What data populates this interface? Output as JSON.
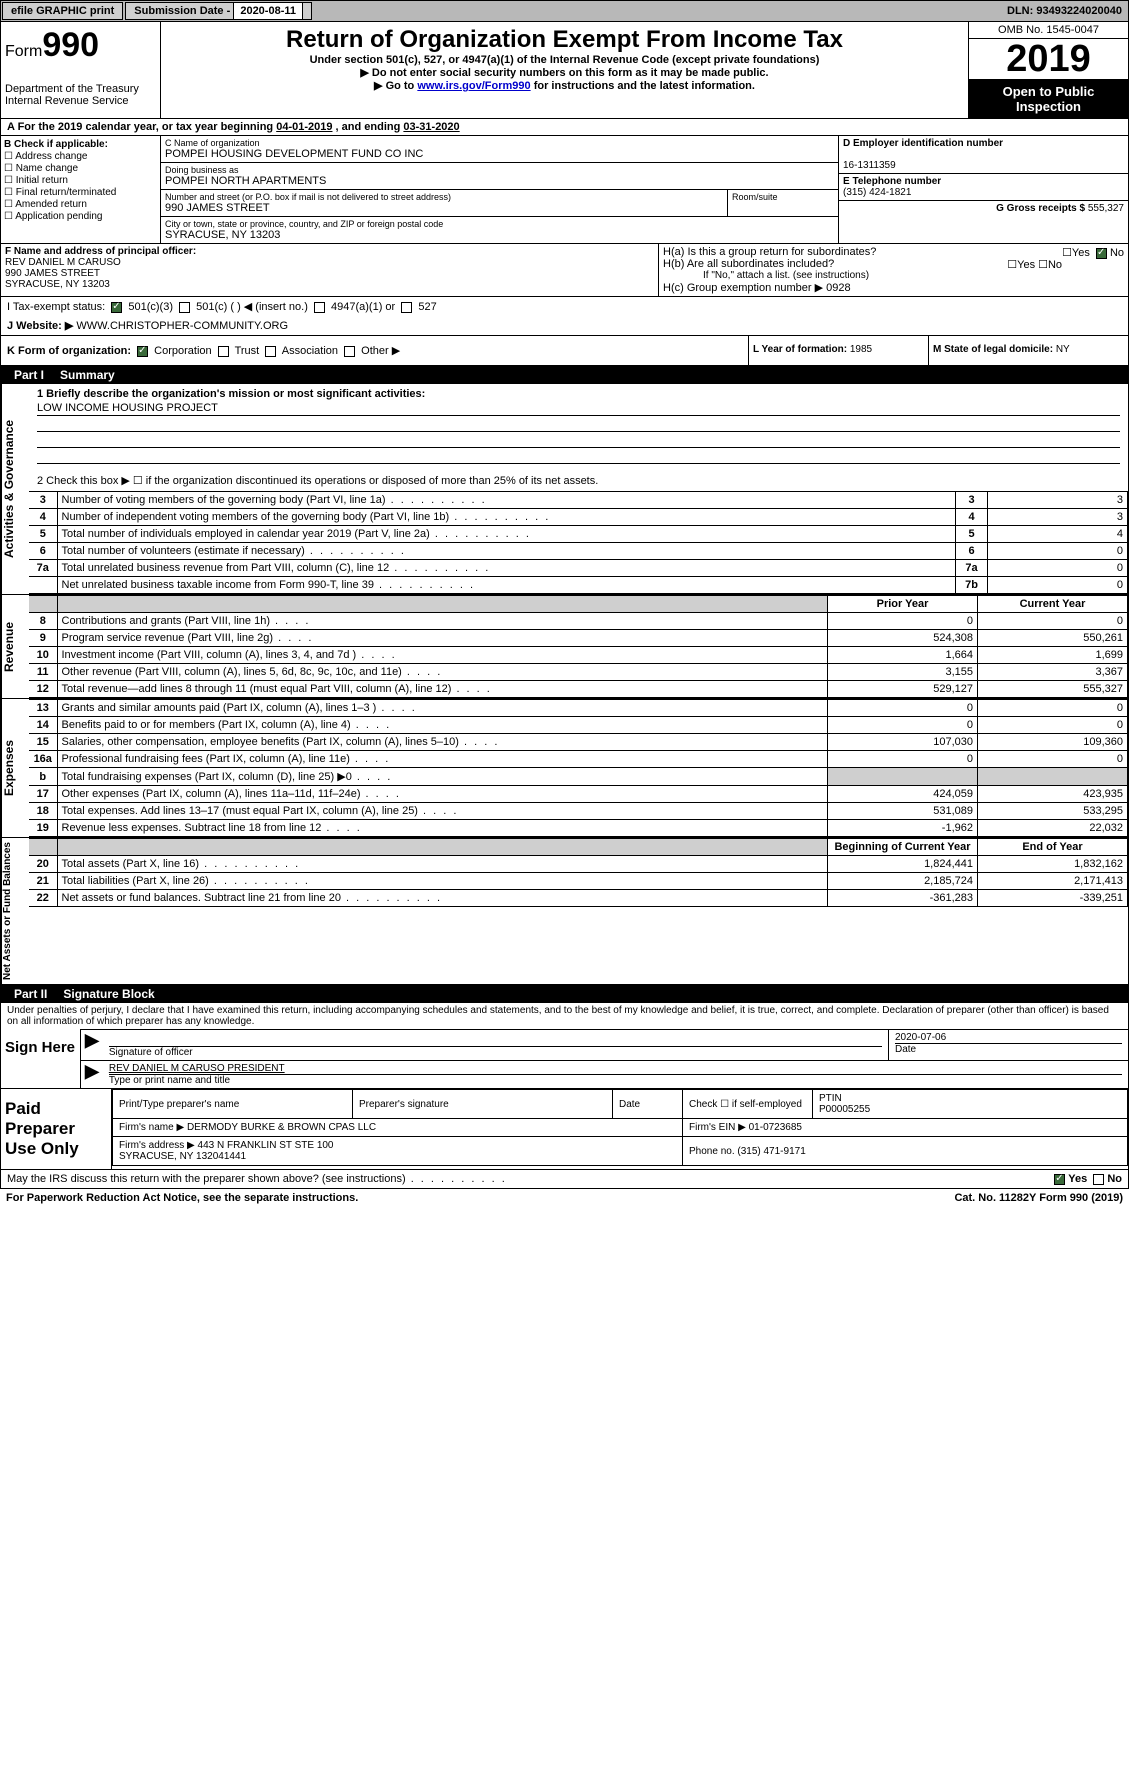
{
  "topbar": {
    "efile": "efile GRAPHIC print",
    "sub_label": "Submission Date - ",
    "sub_date": "2020-08-11",
    "dln": "DLN: 93493224020040"
  },
  "header": {
    "form_prefix": "Form",
    "form_number": "990",
    "dept": "Department of the Treasury\nInternal Revenue Service",
    "title": "Return of Organization Exempt From Income Tax",
    "subtitle": "Under section 501(c), 527, or 4947(a)(1) of the Internal Revenue Code (except private foundations)",
    "note1": "▶ Do not enter social security numbers on this form as it may be made public.",
    "note2_pre": "▶ Go to ",
    "note2_link": "www.irs.gov/Form990",
    "note2_post": " for instructions and the latest information.",
    "omb": "OMB No. 1545-0047",
    "year": "2019",
    "open_public": "Open to Public Inspection"
  },
  "period": {
    "text_pre": "A For the 2019 calendar year, or tax year beginning ",
    "begin": "04-01-2019",
    "text_mid": " , and ending ",
    "end": "03-31-2020"
  },
  "boxB": {
    "label": "B Check if applicable:",
    "opts": [
      "Address change",
      "Name change",
      "Initial return",
      "Final return/terminated",
      "Amended return",
      "Application pending"
    ]
  },
  "boxC": {
    "name_label": "C Name of organization",
    "name": "POMPEI HOUSING DEVELOPMENT FUND CO INC",
    "dba_label": "Doing business as",
    "dba": "POMPEI NORTH APARTMENTS",
    "addr_label": "Number and street (or P.O. box if mail is not delivered to street address)",
    "room_label": "Room/suite",
    "addr": "990 JAMES STREET",
    "city_label": "City or town, state or province, country, and ZIP or foreign postal code",
    "city": "SYRACUSE, NY  13203"
  },
  "boxD": {
    "ein_label": "D Employer identification number",
    "ein": "16-1311359",
    "phone_label": "E Telephone number",
    "phone": "(315) 424-1821",
    "gross_label": "G Gross receipts $ ",
    "gross": "555,327"
  },
  "boxF": {
    "label": "F  Name and address of principal officer:",
    "name": "REV DANIEL M CARUSO",
    "addr": "990 JAMES STREET",
    "city": "SYRACUSE, NY  13203"
  },
  "boxH": {
    "a": "H(a)  Is this a group return for subordinates?",
    "a_no": "No",
    "b": "H(b)  Are all subordinates included?",
    "b_note": "If \"No,\" attach a list. (see instructions)",
    "c": "H(c)  Group exemption number ▶",
    "c_val": "0928"
  },
  "boxI": {
    "label": "I   Tax-exempt status:",
    "o1": "501(c)(3)",
    "o2": "501(c) (   ) ◀ (insert no.)",
    "o3": "4947(a)(1) or",
    "o4": "527"
  },
  "boxJ": {
    "label": "J   Website: ▶",
    "val": "WWW.CHRISTOPHER-COMMUNITY.ORG"
  },
  "boxK": {
    "label": "K Form of organization:",
    "opts": [
      "Corporation",
      "Trust",
      "Association",
      "Other ▶"
    ]
  },
  "boxL": {
    "label": "L Year of formation: ",
    "val": "1985"
  },
  "boxM": {
    "label": "M State of legal domicile: ",
    "val": "NY"
  },
  "part1": {
    "header_pt": "Part I",
    "header_nm": "Summary",
    "q1_label": "1  Briefly describe the organization's mission or most significant activities:",
    "q1_val": "LOW INCOME HOUSING PROJECT",
    "q2": "2    Check this box ▶ ☐  if the organization discontinued its operations or disposed of more than 25% of its net assets.",
    "rows_gov": [
      {
        "n": "3",
        "d": "Number of voting members of the governing body (Part VI, line 1a)",
        "box": "3",
        "v": "3"
      },
      {
        "n": "4",
        "d": "Number of independent voting members of the governing body (Part VI, line 1b)",
        "box": "4",
        "v": "3"
      },
      {
        "n": "5",
        "d": "Total number of individuals employed in calendar year 2019 (Part V, line 2a)",
        "box": "5",
        "v": "4"
      },
      {
        "n": "6",
        "d": "Total number of volunteers (estimate if necessary)",
        "box": "6",
        "v": "0"
      },
      {
        "n": "7a",
        "d": "Total unrelated business revenue from Part VIII, column (C), line 12",
        "box": "7a",
        "v": "0"
      },
      {
        "n": "",
        "d": "Net unrelated business taxable income from Form 990-T, line 39",
        "box": "7b",
        "v": "0"
      }
    ],
    "py_header": "Prior Year",
    "cy_header": "Current Year",
    "rows_rev": [
      {
        "n": "8",
        "d": "Contributions and grants (Part VIII, line 1h)",
        "py": "0",
        "cy": "0"
      },
      {
        "n": "9",
        "d": "Program service revenue (Part VIII, line 2g)",
        "py": "524,308",
        "cy": "550,261"
      },
      {
        "n": "10",
        "d": "Investment income (Part VIII, column (A), lines 3, 4, and 7d )",
        "py": "1,664",
        "cy": "1,699"
      },
      {
        "n": "11",
        "d": "Other revenue (Part VIII, column (A), lines 5, 6d, 8c, 9c, 10c, and 11e)",
        "py": "3,155",
        "cy": "3,367"
      },
      {
        "n": "12",
        "d": "Total revenue—add lines 8 through 11 (must equal Part VIII, column (A), line 12)",
        "py": "529,127",
        "cy": "555,327"
      }
    ],
    "rows_exp": [
      {
        "n": "13",
        "d": "Grants and similar amounts paid (Part IX, column (A), lines 1–3 )",
        "py": "0",
        "cy": "0"
      },
      {
        "n": "14",
        "d": "Benefits paid to or for members (Part IX, column (A), line 4)",
        "py": "0",
        "cy": "0"
      },
      {
        "n": "15",
        "d": "Salaries, other compensation, employee benefits (Part IX, column (A), lines 5–10)",
        "py": "107,030",
        "cy": "109,360"
      },
      {
        "n": "16a",
        "d": "Professional fundraising fees (Part IX, column (A), line 11e)",
        "py": "0",
        "cy": "0"
      },
      {
        "n": "b",
        "d": "Total fundraising expenses (Part IX, column (D), line 25) ▶0",
        "py": "",
        "cy": "",
        "grey": true
      },
      {
        "n": "17",
        "d": "Other expenses (Part IX, column (A), lines 11a–11d, 11f–24e)",
        "py": "424,059",
        "cy": "423,935"
      },
      {
        "n": "18",
        "d": "Total expenses. Add lines 13–17 (must equal Part IX, column (A), line 25)",
        "py": "531,089",
        "cy": "533,295"
      },
      {
        "n": "19",
        "d": "Revenue less expenses. Subtract line 18 from line 12",
        "py": "-1,962",
        "cy": "22,032"
      }
    ],
    "bcy_header": "Beginning of Current Year",
    "eoy_header": "End of Year",
    "rows_net": [
      {
        "n": "20",
        "d": "Total assets (Part X, line 16)",
        "py": "1,824,441",
        "cy": "1,832,162"
      },
      {
        "n": "21",
        "d": "Total liabilities (Part X, line 26)",
        "py": "2,185,724",
        "cy": "2,171,413"
      },
      {
        "n": "22",
        "d": "Net assets or fund balances. Subtract line 21 from line 20",
        "py": "-361,283",
        "cy": "-339,251"
      }
    ],
    "side_gov": "Activities & Governance",
    "side_rev": "Revenue",
    "side_exp": "Expenses",
    "side_net": "Net Assets or Fund Balances"
  },
  "part2": {
    "header_pt": "Part II",
    "header_nm": "Signature Block",
    "intro": "Under penalties of perjury, I declare that I have examined this return, including accompanying schedules and statements, and to the best of my knowledge and belief, it is true, correct, and complete. Declaration of preparer (other than officer) is based on all information of which preparer has any knowledge.",
    "sign_here": "Sign Here",
    "sig_officer": "Signature of officer",
    "sig_date": "2020-07-06",
    "date_label": "Date",
    "officer_name": "REV DANIEL M CARUSO  PRESIDENT",
    "type_label": "Type or print name and title",
    "paid": "Paid Preparer Use Only",
    "prep_name_label": "Print/Type preparer's name",
    "prep_sig_label": "Preparer's signature",
    "prep_date_label": "Date",
    "self_emp": "Check ☐ if self-employed",
    "ptin_label": "PTIN",
    "ptin": "P00005255",
    "firm_name_label": "Firm's name    ▶",
    "firm_name": "DERMODY BURKE & BROWN CPAS LLC",
    "firm_ein_label": "Firm's EIN ▶",
    "firm_ein": "01-0723685",
    "firm_addr_label": "Firm's address ▶",
    "firm_addr": "443 N FRANKLIN ST STE 100",
    "firm_city": "SYRACUSE, NY  132041441",
    "phone_label": "Phone no. ",
    "phone": "(315) 471-9171"
  },
  "footer": {
    "discuss": "May the IRS discuss this return with the preparer shown above? (see instructions)",
    "yes": "Yes",
    "no": "No",
    "pra": "For Paperwork Reduction Act Notice, see the separate instructions.",
    "cat": "Cat. No. 11282Y",
    "form": "Form 990 (2019)"
  }
}
